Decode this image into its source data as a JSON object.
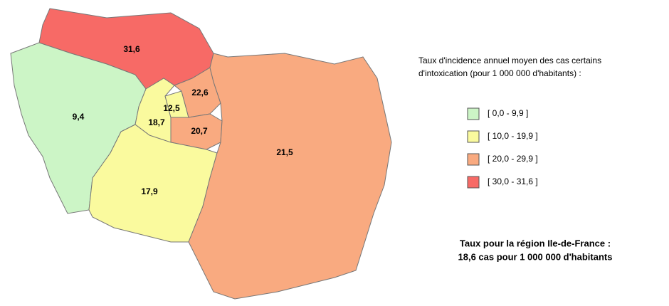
{
  "map": {
    "regions": [
      {
        "label": "31,6",
        "class": 3
      },
      {
        "label": "9,4",
        "class": 0
      },
      {
        "label": "18,7",
        "class": 1
      },
      {
        "label": "12,5",
        "class": 1
      },
      {
        "label": "22,6",
        "class": 2
      },
      {
        "label": "20,7",
        "class": 2
      },
      {
        "label": "17,9",
        "class": 1
      },
      {
        "label": "21,5",
        "class": 2
      }
    ]
  },
  "legend": {
    "title_lines": [
      "Taux d'incidence annuel moyen des cas certains",
      "d'intoxication (pour 1 000 000 d'habitants) :"
    ],
    "entries": [
      {
        "label": "[ 0,0 - 9,9 ]",
        "color": "#ccf5c6"
      },
      {
        "label": "[ 10,0 - 19,9 ]",
        "color": "#fafa9e"
      },
      {
        "label": "[ 20,0 - 29,9 ]",
        "color": "#f9aa80"
      },
      {
        "label": "[ 30,0 - 31,6 ]",
        "color": "#f76a66"
      }
    ]
  },
  "note": {
    "lines": [
      "Taux pour la région Ile-de-France :",
      "18,6 cas pour 1 000 000 d'habitants"
    ]
  }
}
